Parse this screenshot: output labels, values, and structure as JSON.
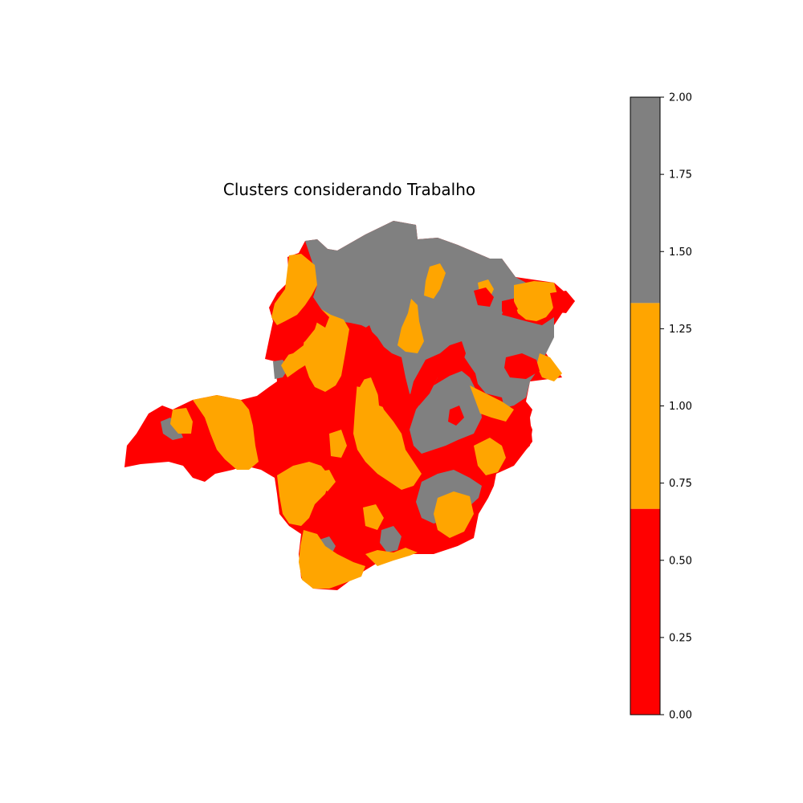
{
  "map": {
    "title": "Clusters considerando Trabalho",
    "regions": [
      {
        "cluster": "gray",
        "color": "#808080"
      },
      {
        "cluster": "orange",
        "color": "#FFA500"
      },
      {
        "cluster": "red",
        "color": "#FF0000"
      }
    ]
  },
  "colorbar": {
    "min": 0.0,
    "max": 2.0,
    "ticks": [
      "0.00",
      "0.25",
      "0.50",
      "0.75",
      "1.00",
      "1.25",
      "1.50",
      "1.75",
      "2.00"
    ],
    "bands": [
      {
        "from": 0.0,
        "to": 0.6667,
        "color": "#FF0000"
      },
      {
        "from": 0.6667,
        "to": 1.3333,
        "color": "#FFA500"
      },
      {
        "from": 1.3333,
        "to": 2.0,
        "color": "#808080"
      }
    ]
  }
}
